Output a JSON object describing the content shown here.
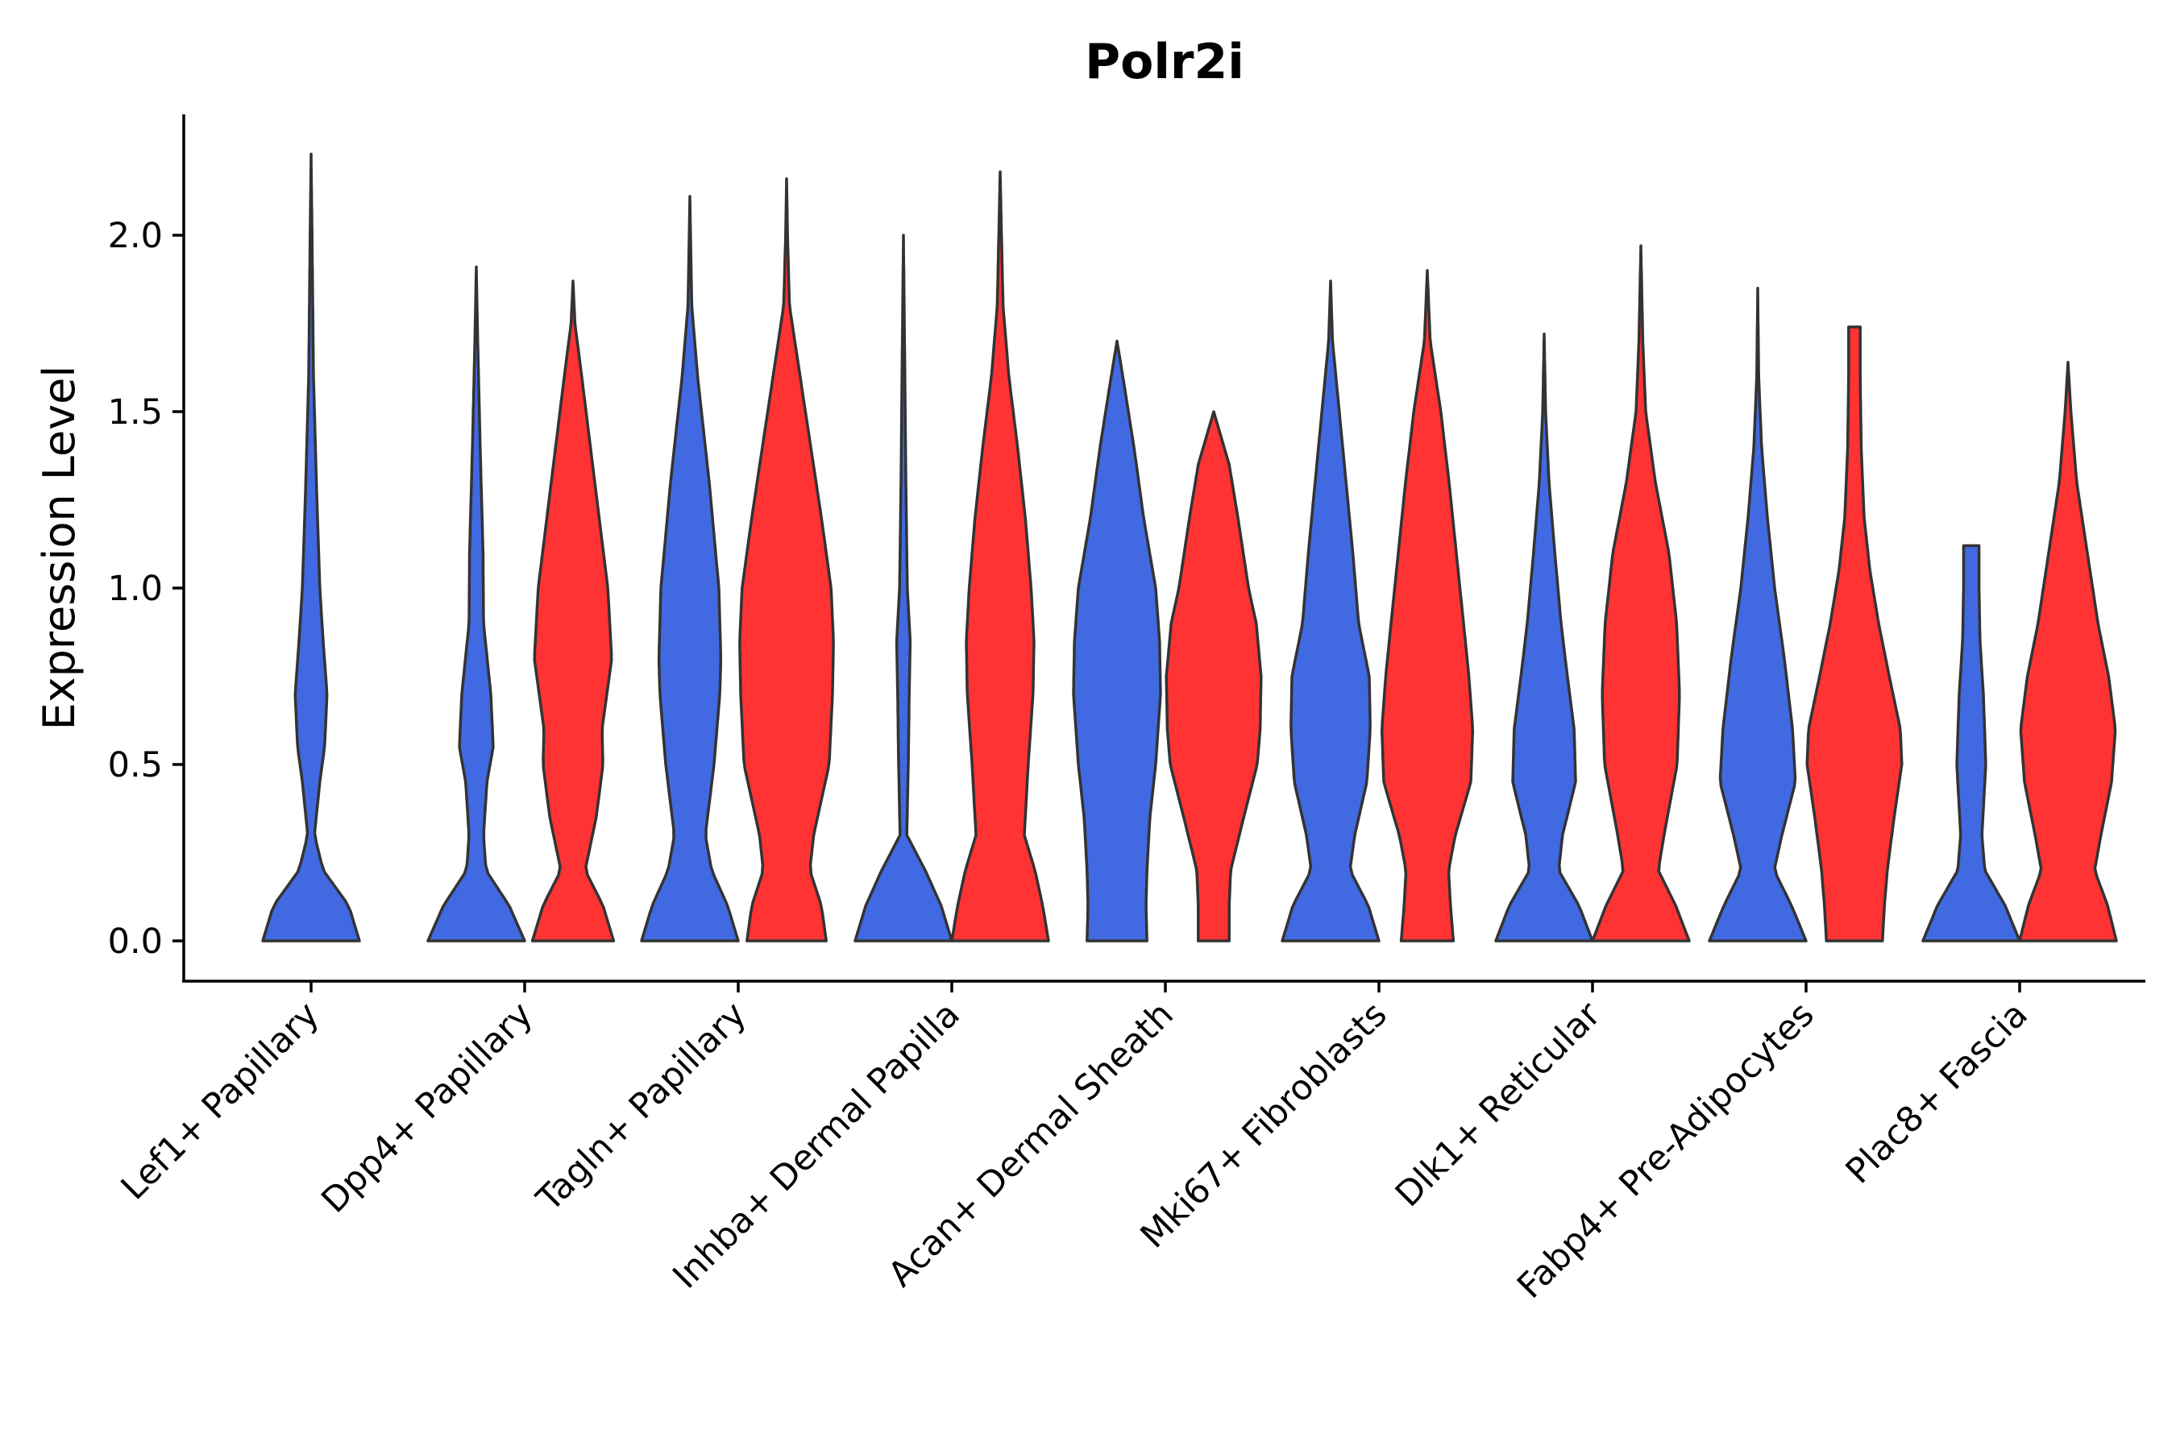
{
  "chart_data": {
    "type": "violin",
    "title": "Polr2i",
    "xlabel": "",
    "ylabel": "Expression Level",
    "ylim": [
      -0.11,
      2.35
    ],
    "yticks": [
      0.0,
      0.5,
      1.0,
      1.5,
      2.0
    ],
    "ytick_labels": [
      "0.0",
      "0.5",
      "1.0",
      "1.5",
      "2.0"
    ],
    "grid": false,
    "legend": "none",
    "groups": [
      {
        "label": "Lef1+ Papillary",
        "violins": [
          {
            "series": "group-a",
            "color": "#4169E1",
            "max": 2.23,
            "profile": [
              [
                0,
                1.0
              ],
              [
                0.1,
                0.78
              ],
              [
                0.2,
                0.25
              ],
              [
                0.3,
                0.07
              ],
              [
                0.45,
                0.18
              ],
              [
                0.55,
                0.28
              ],
              [
                0.7,
                0.33
              ],
              [
                0.85,
                0.25
              ],
              [
                1.0,
                0.18
              ],
              [
                1.3,
                0.11
              ],
              [
                1.6,
                0.05
              ],
              [
                2.0,
                0.02
              ],
              [
                2.23,
                0.0
              ]
            ]
          }
        ]
      },
      {
        "label": "Dpp4+ Papillary",
        "violins": [
          {
            "series": "group-a",
            "color": "#4169E1",
            "max": 1.91,
            "profile": [
              [
                0,
                1.0
              ],
              [
                0.1,
                0.68
              ],
              [
                0.2,
                0.2
              ],
              [
                0.3,
                0.15
              ],
              [
                0.45,
                0.22
              ],
              [
                0.55,
                0.35
              ],
              [
                0.7,
                0.3
              ],
              [
                0.9,
                0.15
              ],
              [
                1.1,
                0.14
              ],
              [
                1.4,
                0.08
              ],
              [
                1.7,
                0.03
              ],
              [
                1.91,
                0.0
              ]
            ]
          },
          {
            "series": "group-b",
            "color": "#FF3333",
            "max": 1.87,
            "profile": [
              [
                0,
                0.84
              ],
              [
                0.1,
                0.62
              ],
              [
                0.2,
                0.25
              ],
              [
                0.35,
                0.48
              ],
              [
                0.5,
                0.62
              ],
              [
                0.6,
                0.6
              ],
              [
                0.8,
                0.8
              ],
              [
                1.0,
                0.72
              ],
              [
                1.2,
                0.54
              ],
              [
                1.4,
                0.36
              ],
              [
                1.6,
                0.18
              ],
              [
                1.75,
                0.04
              ],
              [
                1.87,
                0.0
              ]
            ]
          }
        ]
      },
      {
        "label": "Tagln+ Papillary",
        "violins": [
          {
            "series": "group-a",
            "color": "#4169E1",
            "max": 2.11,
            "profile": [
              [
                0,
                1.0
              ],
              [
                0.1,
                0.78
              ],
              [
                0.2,
                0.45
              ],
              [
                0.3,
                0.32
              ],
              [
                0.5,
                0.5
              ],
              [
                0.7,
                0.62
              ],
              [
                0.8,
                0.64
              ],
              [
                1.0,
                0.6
              ],
              [
                1.3,
                0.4
              ],
              [
                1.6,
                0.16
              ],
              [
                1.8,
                0.04
              ],
              [
                2.11,
                0.0
              ]
            ]
          },
          {
            "series": "group-b",
            "color": "#FF3333",
            "max": 2.16,
            "profile": [
              [
                0,
                0.82
              ],
              [
                0.1,
                0.72
              ],
              [
                0.2,
                0.48
              ],
              [
                0.3,
                0.56
              ],
              [
                0.5,
                0.88
              ],
              [
                0.7,
                0.95
              ],
              [
                0.85,
                0.97
              ],
              [
                1.0,
                0.92
              ],
              [
                1.2,
                0.72
              ],
              [
                1.4,
                0.5
              ],
              [
                1.6,
                0.28
              ],
              [
                1.8,
                0.06
              ],
              [
                2.0,
                0.02
              ],
              [
                2.16,
                0.0
              ]
            ]
          }
        ]
      },
      {
        "label": "Inhba+ Dermal Papilla",
        "violins": [
          {
            "series": "group-a",
            "color": "#4169E1",
            "max": 2.0,
            "profile": [
              [
                0,
                1.0
              ],
              [
                0.1,
                0.78
              ],
              [
                0.2,
                0.45
              ],
              [
                0.3,
                0.07
              ],
              [
                0.5,
                0.1
              ],
              [
                0.7,
                0.12
              ],
              [
                0.85,
                0.14
              ],
              [
                1.0,
                0.08
              ],
              [
                1.3,
                0.05
              ],
              [
                1.6,
                0.03
              ],
              [
                2.0,
                0.0
              ]
            ]
          },
          {
            "series": "group-b",
            "color": "#FF3333",
            "max": 2.18,
            "profile": [
              [
                0,
                1.0
              ],
              [
                0.1,
                0.88
              ],
              [
                0.2,
                0.72
              ],
              [
                0.3,
                0.5
              ],
              [
                0.5,
                0.58
              ],
              [
                0.7,
                0.68
              ],
              [
                0.85,
                0.7
              ],
              [
                1.0,
                0.64
              ],
              [
                1.2,
                0.52
              ],
              [
                1.4,
                0.36
              ],
              [
                1.6,
                0.18
              ],
              [
                1.8,
                0.06
              ],
              [
                2.18,
                0.0
              ]
            ]
          }
        ]
      },
      {
        "label": "Acan+ Dermal Sheath",
        "violins": [
          {
            "series": "group-a",
            "color": "#4169E1",
            "max": 1.7,
            "profile": [
              [
                0,
                0.62
              ],
              [
                0.1,
                0.6
              ],
              [
                0.2,
                0.62
              ],
              [
                0.35,
                0.68
              ],
              [
                0.5,
                0.8
              ],
              [
                0.7,
                0.9
              ],
              [
                0.85,
                0.88
              ],
              [
                1.0,
                0.8
              ],
              [
                1.2,
                0.55
              ],
              [
                1.4,
                0.35
              ],
              [
                1.6,
                0.12
              ],
              [
                1.7,
                0.0
              ]
            ]
          },
          {
            "series": "group-b",
            "color": "#FF3333",
            "max": 1.5,
            "profile": [
              [
                0,
                0.32
              ],
              [
                0.1,
                0.32
              ],
              [
                0.2,
                0.35
              ],
              [
                0.35,
                0.62
              ],
              [
                0.5,
                0.9
              ],
              [
                0.6,
                0.96
              ],
              [
                0.75,
                0.98
              ],
              [
                0.9,
                0.88
              ],
              [
                1.0,
                0.72
              ],
              [
                1.2,
                0.5
              ],
              [
                1.35,
                0.32
              ],
              [
                1.5,
                0.0
              ]
            ]
          }
        ]
      },
      {
        "label": "Mki67+ Fibroblasts",
        "violins": [
          {
            "series": "group-a",
            "color": "#4169E1",
            "max": 1.87,
            "profile": [
              [
                0,
                1.0
              ],
              [
                0.1,
                0.78
              ],
              [
                0.2,
                0.4
              ],
              [
                0.3,
                0.5
              ],
              [
                0.45,
                0.75
              ],
              [
                0.6,
                0.82
              ],
              [
                0.75,
                0.8
              ],
              [
                0.9,
                0.58
              ],
              [
                1.1,
                0.46
              ],
              [
                1.3,
                0.32
              ],
              [
                1.5,
                0.18
              ],
              [
                1.7,
                0.04
              ],
              [
                1.87,
                0.0
              ]
            ]
          },
          {
            "series": "group-b",
            "color": "#FF3333",
            "max": 1.9,
            "profile": [
              [
                0,
                0.54
              ],
              [
                0.1,
                0.48
              ],
              [
                0.2,
                0.44
              ],
              [
                0.3,
                0.58
              ],
              [
                0.45,
                0.9
              ],
              [
                0.6,
                0.94
              ],
              [
                0.75,
                0.86
              ],
              [
                0.9,
                0.75
              ],
              [
                1.1,
                0.6
              ],
              [
                1.3,
                0.45
              ],
              [
                1.5,
                0.28
              ],
              [
                1.7,
                0.06
              ],
              [
                1.9,
                0.0
              ]
            ]
          }
        ]
      },
      {
        "label": "Dlk1+ Reticular",
        "violins": [
          {
            "series": "group-a",
            "color": "#4169E1",
            "max": 1.72,
            "profile": [
              [
                0,
                1.0
              ],
              [
                0.1,
                0.72
              ],
              [
                0.2,
                0.3
              ],
              [
                0.3,
                0.38
              ],
              [
                0.45,
                0.65
              ],
              [
                0.6,
                0.62
              ],
              [
                0.75,
                0.48
              ],
              [
                0.9,
                0.35
              ],
              [
                1.1,
                0.22
              ],
              [
                1.3,
                0.1
              ],
              [
                1.5,
                0.03
              ],
              [
                1.72,
                0.0
              ]
            ]
          },
          {
            "series": "group-b",
            "color": "#FF3333",
            "max": 1.97,
            "profile": [
              [
                0,
                1.0
              ],
              [
                0.1,
                0.72
              ],
              [
                0.2,
                0.36
              ],
              [
                0.3,
                0.48
              ],
              [
                0.5,
                0.75
              ],
              [
                0.7,
                0.8
              ],
              [
                0.9,
                0.74
              ],
              [
                1.1,
                0.58
              ],
              [
                1.3,
                0.3
              ],
              [
                1.5,
                0.1
              ],
              [
                1.7,
                0.04
              ],
              [
                1.97,
                0.0
              ]
            ]
          }
        ]
      },
      {
        "label": "Fabp4+ Pre-Adipocytes",
        "violins": [
          {
            "series": "group-a",
            "color": "#4169E1",
            "max": 1.85,
            "profile": [
              [
                0,
                1.0
              ],
              [
                0.1,
                0.7
              ],
              [
                0.2,
                0.34
              ],
              [
                0.3,
                0.5
              ],
              [
                0.45,
                0.78
              ],
              [
                0.6,
                0.72
              ],
              [
                0.8,
                0.55
              ],
              [
                1.0,
                0.35
              ],
              [
                1.2,
                0.2
              ],
              [
                1.4,
                0.08
              ],
              [
                1.6,
                0.02
              ],
              [
                1.85,
                0.0
              ]
            ]
          },
          {
            "series": "group-b",
            "color": "#FF3333",
            "max": 1.74,
            "profile": [
              [
                0,
                0.58
              ],
              [
                0.1,
                0.62
              ],
              [
                0.2,
                0.68
              ],
              [
                0.35,
                0.82
              ],
              [
                0.5,
                0.98
              ],
              [
                0.6,
                0.95
              ],
              [
                0.75,
                0.72
              ],
              [
                0.9,
                0.5
              ],
              [
                1.05,
                0.32
              ],
              [
                1.2,
                0.2
              ],
              [
                1.4,
                0.14
              ],
              [
                1.6,
                0.12
              ],
              [
                1.74,
                0.12
              ]
            ]
          }
        ]
      },
      {
        "label": "Plac8+ Fascia",
        "violins": [
          {
            "series": "group-a",
            "color": "#4169E1",
            "max": 1.12,
            "profile": [
              [
                0,
                1.0
              ],
              [
                0.1,
                0.7
              ],
              [
                0.2,
                0.28
              ],
              [
                0.3,
                0.22
              ],
              [
                0.5,
                0.3
              ],
              [
                0.7,
                0.25
              ],
              [
                0.85,
                0.18
              ],
              [
                1.0,
                0.16
              ],
              [
                1.12,
                0.16
              ]
            ]
          },
          {
            "series": "group-b",
            "color": "#FF3333",
            "max": 1.64,
            "profile": [
              [
                0,
                1.0
              ],
              [
                0.1,
                0.82
              ],
              [
                0.2,
                0.55
              ],
              [
                0.3,
                0.68
              ],
              [
                0.45,
                0.9
              ],
              [
                0.6,
                0.98
              ],
              [
                0.75,
                0.84
              ],
              [
                0.9,
                0.62
              ],
              [
                1.1,
                0.4
              ],
              [
                1.3,
                0.18
              ],
              [
                1.5,
                0.06
              ],
              [
                1.64,
                0.0
              ]
            ]
          }
        ]
      }
    ]
  }
}
